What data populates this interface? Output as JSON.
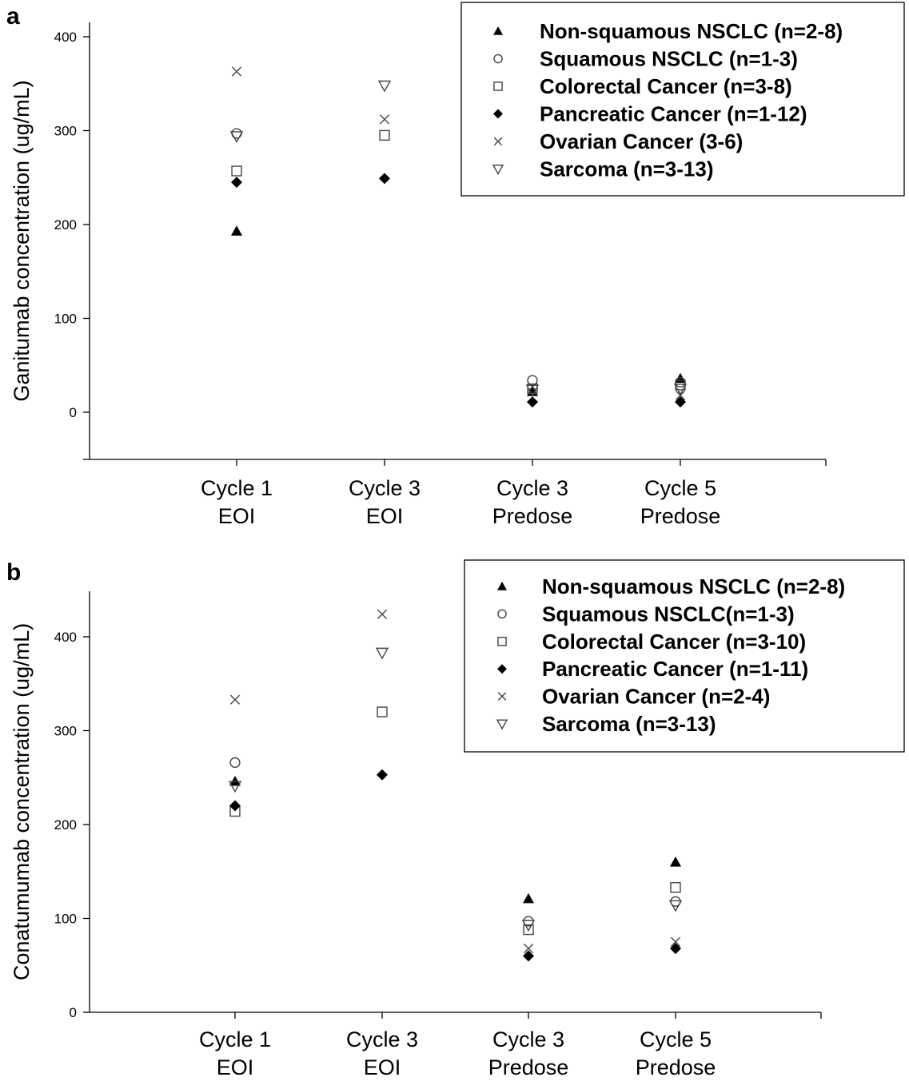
{
  "chart_data": [
    {
      "type": "scatter",
      "panel_label": "a",
      "ylabel": "Ganitumab concentration (ug/mL)",
      "yticks": [
        0,
        100,
        200,
        300,
        400
      ],
      "ylim": [
        -50,
        400
      ],
      "categories": [
        "Cycle 1\nEOI",
        "Cycle 3\nEOI",
        "Cycle 3\nPredose",
        "Cycle 5\nPredose"
      ],
      "legend_position": "top-right",
      "series": [
        {
          "name": "Non-squamous NSCLC (n=2-8)",
          "marker": "triangle-filled",
          "values": [
            193,
            null,
            22,
            36
          ]
        },
        {
          "name": "Squamous NSCLC (n=1-3)",
          "marker": "circle-open",
          "values": [
            297,
            null,
            34,
            32
          ]
        },
        {
          "name": "Colorectal Cancer (n=3-8)",
          "marker": "square-open",
          "values": [
            257,
            295,
            25,
            29
          ]
        },
        {
          "name": "Pancreatic Cancer (n=1-12)",
          "marker": "diamond-filled",
          "values": [
            245,
            249,
            11,
            11
          ]
        },
        {
          "name": "Ovarian Cancer (3-6)",
          "marker": "x",
          "values": [
            363,
            312,
            27,
            18
          ]
        },
        {
          "name": "Sarcoma (n=3-13)",
          "marker": "triangle-down-open",
          "values": [
            294,
            348,
            24,
            25
          ]
        }
      ]
    },
    {
      "type": "scatter",
      "panel_label": "b",
      "ylabel": "Conatumumab concentration (ug/mL)",
      "yticks": [
        0,
        100,
        200,
        300,
        400
      ],
      "ylim": [
        0,
        440
      ],
      "categories": [
        "Cycle 1\nEOI",
        "Cycle 3\nEOI",
        "Cycle 3\nPredose",
        "Cycle 5\nPredose"
      ],
      "legend_position": "top-right",
      "series": [
        {
          "name": "Non-squamous NSCLC (n=2-8)",
          "marker": "triangle-filled",
          "values": [
            246,
            null,
            121,
            160
          ]
        },
        {
          "name": "Squamous NSCLC(n=1-3)",
          "marker": "circle-open",
          "values": [
            266,
            null,
            97,
            118
          ]
        },
        {
          "name": "Colorectal Cancer (n=3-10)",
          "marker": "square-open",
          "values": [
            214,
            320,
            88,
            133
          ]
        },
        {
          "name": "Pancreatic Cancer (n=1-11)",
          "marker": "diamond-filled",
          "values": [
            220,
            253,
            60,
            68
          ]
        },
        {
          "name": "Ovarian Cancer (n=2-4)",
          "marker": "x",
          "values": [
            333,
            424,
            68,
            75
          ]
        },
        {
          "name": "Sarcoma (n=3-13)",
          "marker": "triangle-down-open",
          "values": [
            241,
            383,
            93,
            114
          ]
        }
      ]
    }
  ]
}
